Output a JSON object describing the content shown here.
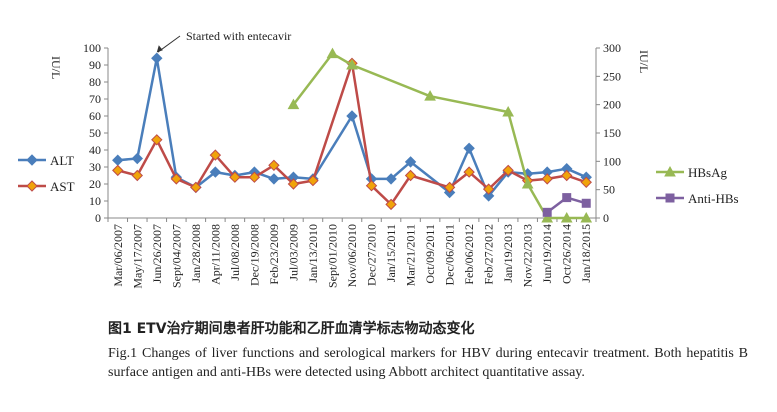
{
  "caption": {
    "cn": "图1 ETV治疗期间患者肝功能和乙肝血清学标志物动态变化",
    "en": "Fig.1 Changes of liver functions and serological markers for HBV during entecavir treatment. Both hepatitis B surface antigen and anti-HBs were detected using Abbott architect quantitative assay."
  },
  "colors": {
    "ALT": "#4a7ebb",
    "AST": "#be4b48",
    "AST_marker": "#f0a30a",
    "HBsAg": "#98b954",
    "Anti-HBs": "#7d60a0",
    "axis": "#888888"
  },
  "chart_data": {
    "type": "line",
    "x": [
      "Mar/06/2007",
      "May/17/2007",
      "Jun/26/2007",
      "Sept/04/2007",
      "Jan/28/2008",
      "Apr/11/2008",
      "Jul/08/2008",
      "Dec/19/2008",
      "Feb/23/2009",
      "Jul/03/2009",
      "Jan/13/2010",
      "Sept/01/2010",
      "Nov/06/2010",
      "Dec/27/2010",
      "Jan/15/2011",
      "Mar/21/2011",
      "Oct/09/2011",
      "Dec/06/2011",
      "Feb/06/2012",
      "Feb/27/2012",
      "Jan/19/2013",
      "Nov/22/2013",
      "Jun/19/2014",
      "Oct/26/2014",
      "Jan/18/2015"
    ],
    "left_axis": {
      "label": "IU/L",
      "ylim": [
        0,
        100
      ],
      "ticks": [
        0,
        10,
        20,
        30,
        40,
        50,
        60,
        70,
        80,
        90,
        100
      ]
    },
    "right_axis": {
      "label": "IU/L",
      "ylim": [
        0,
        300
      ],
      "ticks": [
        0,
        50,
        100,
        150,
        200,
        250,
        300
      ]
    },
    "series": [
      {
        "name": "ALT",
        "axis": "left",
        "marker": "diamond",
        "values": [
          34,
          35,
          94,
          24,
          18,
          27,
          25,
          27,
          23,
          24,
          23,
          null,
          60,
          23,
          23,
          33,
          null,
          15,
          41,
          13,
          27,
          26,
          27,
          29,
          24
        ]
      },
      {
        "name": "AST",
        "axis": "left",
        "marker": "diamond",
        "values": [
          28,
          25,
          46,
          23,
          18,
          37,
          24,
          24,
          31,
          20,
          22,
          null,
          91,
          19,
          8,
          25,
          null,
          18,
          27,
          17,
          28,
          22,
          23,
          25,
          21
        ]
      },
      {
        "name": "HBsAg",
        "axis": "right",
        "marker": "triangle",
        "values": [
          null,
          null,
          null,
          null,
          null,
          null,
          null,
          null,
          null,
          200,
          null,
          290,
          270,
          null,
          null,
          null,
          215,
          null,
          null,
          null,
          187,
          60,
          0,
          0,
          0
        ]
      },
      {
        "name": "Anti-HBs",
        "axis": "right",
        "marker": "square",
        "values": [
          null,
          null,
          null,
          null,
          null,
          null,
          null,
          null,
          null,
          null,
          null,
          null,
          null,
          null,
          null,
          null,
          null,
          null,
          null,
          null,
          null,
          null,
          10,
          36,
          26
        ]
      }
    ],
    "annotation": {
      "text": "Started with entecavir",
      "x": "Jun/26/2007"
    }
  }
}
